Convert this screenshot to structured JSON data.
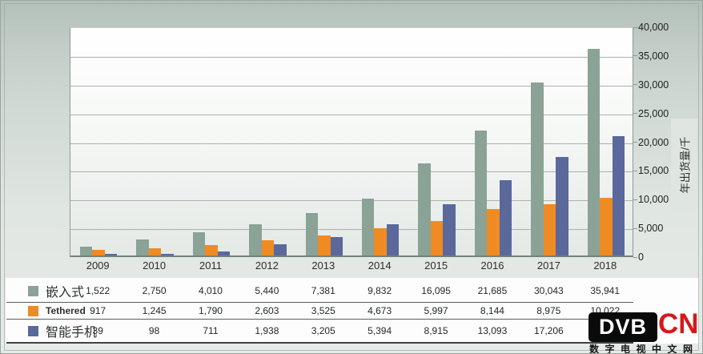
{
  "chart_data": {
    "type": "bar",
    "title": "",
    "ylabel": "年出货量/千",
    "ylim": [
      0,
      40000
    ],
    "ytick_step": 5000,
    "ytick_labels": [
      "0",
      "5,000",
      "10,000",
      "15,000",
      "20,000",
      "25,000",
      "30,000",
      "35,000",
      "40,000"
    ],
    "grid": true,
    "legend_position": "table-left",
    "categories": [
      "2009",
      "2010",
      "2011",
      "2012",
      "2013",
      "2014",
      "2015",
      "2016",
      "2017",
      "2018"
    ],
    "series": [
      {
        "name": "嵌入式",
        "color": "#8ba296",
        "values": [
          1522,
          2750,
          4010,
          5440,
          7381,
          9832,
          16095,
          21685,
          30043,
          35941
        ],
        "display": [
          "1,522",
          "2,750",
          "4,010",
          "5,440",
          "7,381",
          "9,832",
          "16,095",
          "21,685",
          "30,043",
          "35,941"
        ]
      },
      {
        "name": "Tethered",
        "color": "#ef8b22",
        "values": [
          917,
          1245,
          1790,
          2603,
          3525,
          4673,
          5997,
          8144,
          8975,
          10022
        ],
        "display": [
          "917",
          "1,245",
          "1,790",
          "2,603",
          "3,525",
          "4,673",
          "5,997",
          "8,144",
          "8,975",
          "10,022"
        ]
      },
      {
        "name": "智能手机",
        "color": "#5a689b",
        "values": [
          39,
          98,
          711,
          1938,
          3205,
          5394,
          8915,
          13093,
          17206,
          20800
        ],
        "display": [
          "39",
          "98",
          "711",
          "1,938",
          "3,205",
          "5,394",
          "8,915",
          "13,093",
          "17,206",
          ""
        ]
      }
    ]
  },
  "watermark": {
    "logo_black": "DVB",
    "logo_red": "CN",
    "subtitle": "数字电视中文网",
    "red_color": "#d6181c",
    "black_color": "#0a0a0a"
  }
}
